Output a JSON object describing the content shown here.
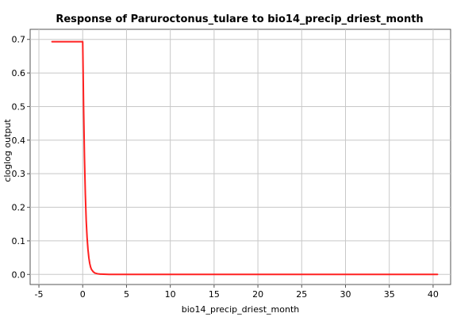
{
  "chart_data": {
    "type": "line",
    "title": "Response of Paruroctonus_tulare to bio14_precip_driest_month",
    "xlabel": "bio14_precip_driest_month",
    "ylabel": "cloglog output",
    "xlim": [
      -6,
      42
    ],
    "ylim": [
      -0.03,
      0.73
    ],
    "x_ticks": [
      -5,
      0,
      5,
      10,
      15,
      20,
      25,
      30,
      35,
      40
    ],
    "y_ticks": [
      0.0,
      0.1,
      0.2,
      0.3,
      0.4,
      0.5,
      0.6,
      0.7
    ],
    "x_tick_labels": [
      "-5",
      "0",
      "5",
      "10",
      "15",
      "20",
      "25",
      "30",
      "35",
      "40"
    ],
    "y_tick_labels": [
      "0.0",
      "0.1",
      "0.2",
      "0.3",
      "0.4",
      "0.5",
      "0.6",
      "0.7"
    ],
    "grid": true,
    "series": [
      {
        "color": "#ff2020",
        "x": [
          -3.5,
          -2,
          -1,
          -0.3,
          0,
          0.05,
          0.1,
          0.2,
          0.3,
          0.4,
          0.5,
          0.6,
          0.7,
          0.8,
          0.9,
          1.0,
          1.2,
          1.4,
          1.7,
          2.0,
          3,
          5,
          10,
          20,
          30,
          40.5
        ],
        "y": [
          0.693,
          0.693,
          0.693,
          0.693,
          0.693,
          0.6,
          0.5,
          0.35,
          0.24,
          0.16,
          0.11,
          0.075,
          0.05,
          0.033,
          0.022,
          0.015,
          0.008,
          0.004,
          0.002,
          0.001,
          0.0,
          0.0,
          0.0,
          0.0,
          0.0,
          0.0
        ]
      }
    ]
  }
}
